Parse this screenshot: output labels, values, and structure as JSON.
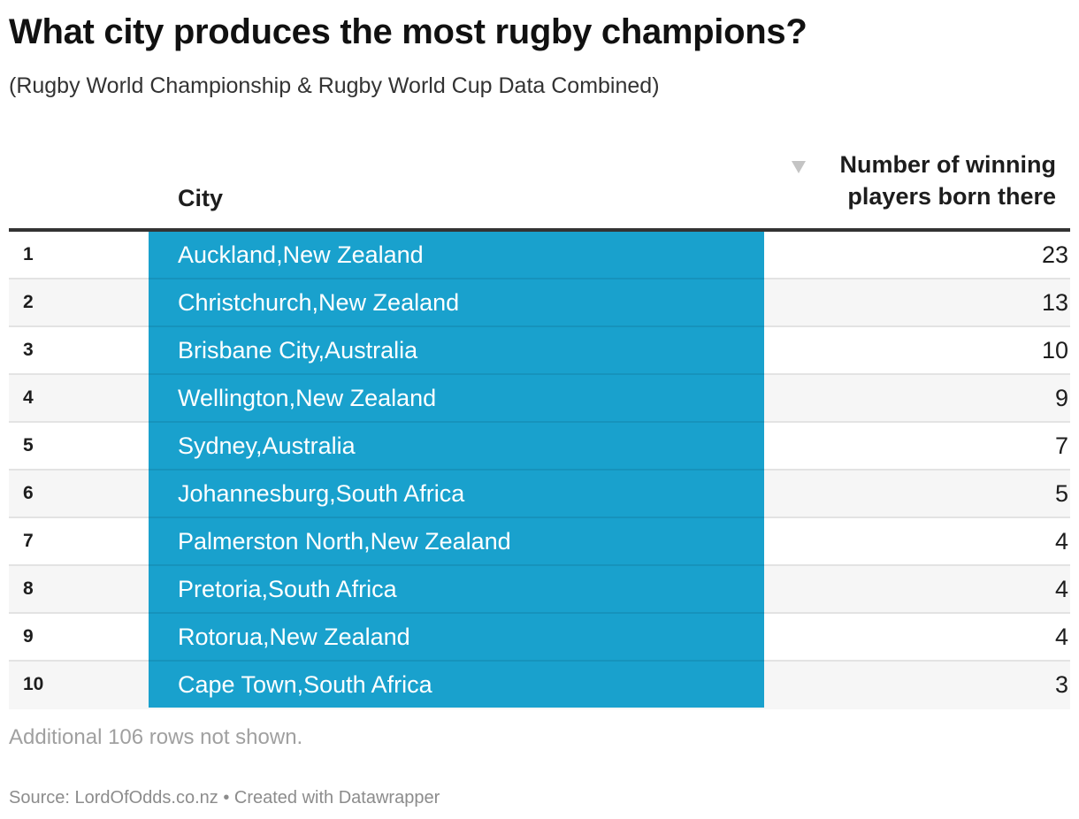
{
  "title": "What city produces the most rugby champions?",
  "subtitle": "(Rugby World Championship & Rugby World Cup Data Combined)",
  "colors": {
    "bar": "#19a1cd",
    "header_rule": "#333333",
    "alt_row": "#f6f6f6"
  },
  "table": {
    "columns": {
      "city": "City",
      "number_line1": "Number of winning",
      "number_line2": "players born there",
      "sort_icon": "sort-descending-icon"
    }
  },
  "chart_data": {
    "type": "table",
    "columns": [
      "",
      "City",
      "Number of winning players born there"
    ],
    "sorted_by": "Number of winning players born there",
    "sort_order": "descending",
    "rows": [
      {
        "rank": "1",
        "city": "Auckland,New Zealand",
        "value": 23
      },
      {
        "rank": "2",
        "city": "Christchurch,New Zealand",
        "value": 13
      },
      {
        "rank": "3",
        "city": "Brisbane City,Australia",
        "value": 10
      },
      {
        "rank": "4",
        "city": "Wellington,New Zealand",
        "value": 9
      },
      {
        "rank": "5",
        "city": "Sydney,Australia",
        "value": 7
      },
      {
        "rank": "6",
        "city": "Johannesburg,South Africa",
        "value": 5
      },
      {
        "rank": "7",
        "city": "Palmerston North,New Zealand",
        "value": 4
      },
      {
        "rank": "8",
        "city": "Pretoria,South Africa",
        "value": 4
      },
      {
        "rank": "9",
        "city": "Rotorua,New Zealand",
        "value": 4
      },
      {
        "rank": "10",
        "city": "Cape Town,South Africa",
        "value": 3
      }
    ]
  },
  "note": "Additional 106 rows not shown.",
  "footer": "Source: LordOfOdds.co.nz • Created with Datawrapper"
}
